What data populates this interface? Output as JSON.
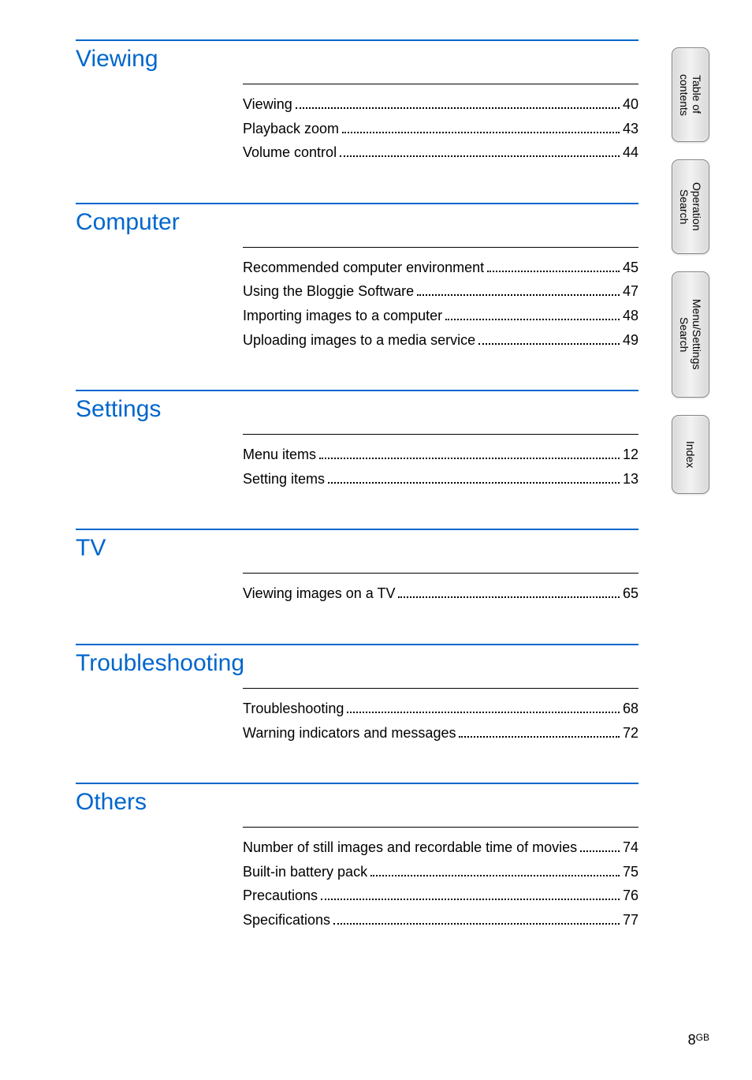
{
  "sections": [
    {
      "title": "Viewing",
      "items": [
        {
          "label": "Viewing",
          "page": "40"
        },
        {
          "label": "Playback zoom",
          "page": "43"
        },
        {
          "label": "Volume control",
          "page": "44"
        }
      ]
    },
    {
      "title": "Computer",
      "items": [
        {
          "label": "Recommended computer environment",
          "page": "45"
        },
        {
          "label": "Using the Bloggie Software",
          "page": "47"
        },
        {
          "label": "Importing images to a computer",
          "page": "48"
        },
        {
          "label": "Uploading images to a media service",
          "page": "49"
        }
      ]
    },
    {
      "title": "Settings",
      "items": [
        {
          "label": "Menu items",
          "page": "12"
        },
        {
          "label": "Setting items",
          "page": "13"
        }
      ]
    },
    {
      "title": "TV",
      "items": [
        {
          "label": "Viewing images on a TV",
          "page": "65"
        }
      ]
    },
    {
      "title": "Troubleshooting",
      "items": [
        {
          "label": "Troubleshooting",
          "page": "68"
        },
        {
          "label": "Warning indicators and messages",
          "page": "72"
        }
      ]
    },
    {
      "title": "Others",
      "items": [
        {
          "label": "Number of still images and recordable time of movies",
          "page": "74"
        },
        {
          "label": "Built-in battery pack",
          "page": "75"
        },
        {
          "label": "Precautions",
          "page": "76"
        },
        {
          "label": "Specifications",
          "page": "77"
        }
      ]
    }
  ],
  "tabs": {
    "toc": "Table of\ncontents",
    "operation": "Operation\nSearch",
    "menu": "Menu/Settings\nSearch",
    "index": "Index"
  },
  "footer": {
    "page": "8",
    "suffix": "GB"
  },
  "colors": {
    "heading": "#0066cc",
    "rule": "#0066cc",
    "body_bg": "#ffffff",
    "tab_border": "#888888",
    "tab_fill_a": "#d9d9d9",
    "tab_fill_b": "#f2f2f2"
  }
}
